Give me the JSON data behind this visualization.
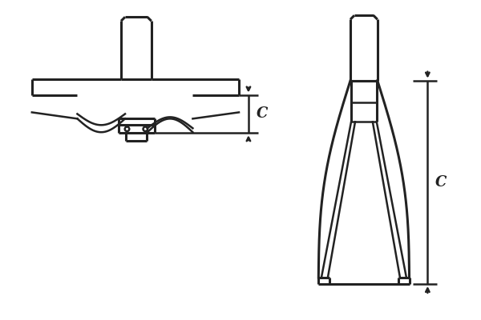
{
  "bg_color": "#ffffff",
  "line_color": "#222222",
  "lw": 1.8,
  "lw_thick": 2.2,
  "label_fontsize": 13,
  "fig_width": 6.0,
  "fig_height": 4.0,
  "dpi": 100
}
